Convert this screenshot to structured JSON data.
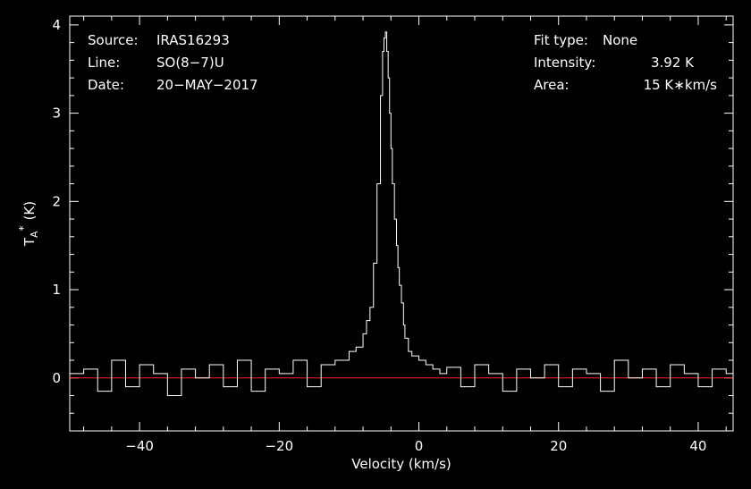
{
  "header_left": [
    {
      "label": "Source:",
      "value": "IRAS16293"
    },
    {
      "label": "Line:",
      "value": "SO(8−7)U"
    },
    {
      "label": "Date:",
      "value": "20−MAY−2017"
    }
  ],
  "header_right": [
    {
      "label": "Fit type:",
      "value": "None"
    },
    {
      "label": "Intensity:",
      "value": "3.92 K"
    },
    {
      "label": "Area:",
      "value": "15 K∗km/s"
    }
  ],
  "chart_data": {
    "type": "line",
    "xlabel": "Velocity (km/s)",
    "ylabel_main": "T",
    "ylabel_sub": "A",
    "ylabel_sup": "*",
    "ylabel_unit": "(K)",
    "xlim": [
      -50,
      45
    ],
    "ylim": [
      -0.6,
      4.1
    ],
    "xticks": [
      -40,
      -20,
      0,
      20,
      40
    ],
    "xtick_labels": [
      "−40",
      "−20",
      "0",
      "20",
      "40"
    ],
    "yticks": [
      0,
      1,
      2,
      3,
      4
    ],
    "ytick_labels": [
      "0",
      "1",
      "2",
      "3",
      "4"
    ],
    "baseline_y": 0,
    "colors": {
      "spectrum": "#ffffff",
      "baseline": "#ff2020",
      "axes": "#ffffff"
    },
    "peak": {
      "x": -4.8,
      "y": 3.92
    },
    "series": [
      {
        "x": [
          -50,
          -48,
          -46,
          -44,
          -42,
          -40,
          -38,
          -36,
          -34,
          -32,
          -30,
          -28,
          -26,
          -24,
          -22,
          -20,
          -18,
          -16,
          -14,
          -12,
          -10,
          -9,
          -8,
          -7.5,
          -7,
          -6.5,
          -6,
          -5.5,
          -5.2,
          -5,
          -4.8,
          -4.6,
          -4.4,
          -4.2,
          -4,
          -3.8,
          -3.5,
          -3.2,
          -3,
          -2.8,
          -2.5,
          -2.2,
          -2,
          -1.5,
          -1,
          0,
          1,
          2,
          3,
          4,
          6,
          8,
          10,
          12,
          14,
          16,
          18,
          20,
          22,
          24,
          26,
          28,
          30,
          32,
          34,
          36,
          38,
          40,
          42,
          44,
          45
        ],
        "y": [
          0.05,
          0.1,
          -0.15,
          0.2,
          -0.1,
          0.15,
          0.05,
          -0.2,
          0.1,
          0.0,
          0.15,
          -0.1,
          0.2,
          -0.15,
          0.1,
          0.05,
          0.2,
          -0.1,
          0.15,
          0.2,
          0.3,
          0.35,
          0.5,
          0.65,
          0.8,
          1.3,
          2.2,
          3.2,
          3.7,
          3.85,
          3.92,
          3.7,
          3.4,
          3.0,
          2.6,
          2.2,
          1.8,
          1.5,
          1.25,
          1.05,
          0.85,
          0.6,
          0.45,
          0.3,
          0.25,
          0.2,
          0.15,
          0.1,
          0.05,
          0.12,
          -0.1,
          0.15,
          0.05,
          -0.15,
          0.1,
          0.0,
          0.15,
          -0.1,
          0.1,
          0.05,
          -0.15,
          0.2,
          0.0,
          0.1,
          -0.1,
          0.15,
          0.05,
          -0.1,
          0.1,
          0.05,
          0.0
        ]
      }
    ]
  }
}
